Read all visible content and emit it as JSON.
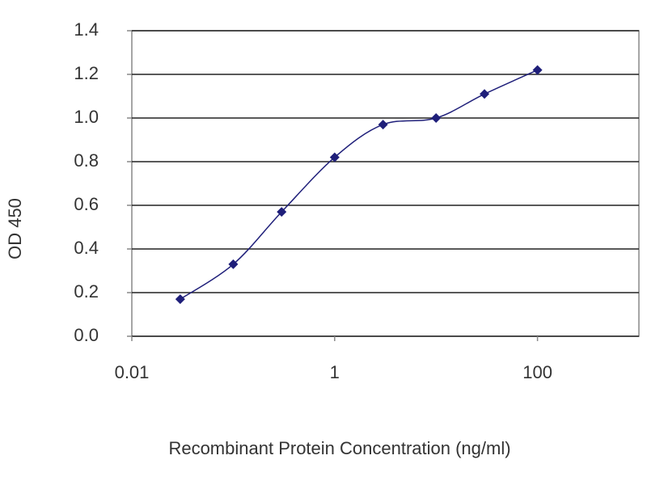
{
  "chart_data": {
    "type": "line",
    "x_label": "Recombinant Protein Concentration (ng/ml)",
    "y_label": "OD 450",
    "x": [
      0.03,
      0.1,
      0.3,
      1,
      3,
      10,
      30,
      100
    ],
    "series": [
      {
        "name": "OD 450",
        "color": "#1f1f7a",
        "values": [
          0.17,
          0.33,
          0.57,
          0.82,
          0.97,
          1.0,
          1.11,
          1.22
        ]
      }
    ],
    "xlim": [
      0.01,
      1000
    ],
    "xticks": [
      0.01,
      1,
      100
    ],
    "xlog": true,
    "ylim": [
      0,
      1.4
    ],
    "yticks": [
      {
        "value": 0,
        "label": "0.0"
      },
      0.2,
      0.4,
      0.6,
      0.8,
      {
        "value": 1,
        "label": "1.0"
      },
      1.2,
      1.4
    ],
    "grid": true,
    "smooth": true
  }
}
